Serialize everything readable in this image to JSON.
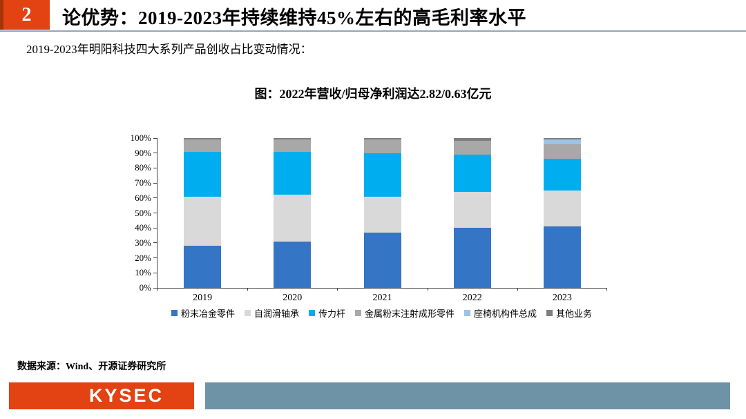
{
  "header": {
    "page_number": "2",
    "title": "论优势：2019-2023年持续维持45%左右的高毛利率水平"
  },
  "subtitle": "2019-2023年明阳科技四大系列产品创收占比变动情况：",
  "chart_title": "图：2022年营收/归母净利润达2.82/0.63亿元",
  "chart_data": {
    "type": "bar",
    "stacked": true,
    "categories": [
      "2019",
      "2020",
      "2021",
      "2022",
      "2023"
    ],
    "series": [
      {
        "name": "粉末冶金零件",
        "color": "#3575C5",
        "values": [
          28,
          31,
          37,
          40,
          41
        ]
      },
      {
        "name": "自润滑轴承",
        "color": "#D9D9D9",
        "values": [
          33,
          31,
          24,
          24,
          24
        ]
      },
      {
        "name": "传力杆",
        "color": "#00AEEF",
        "values": [
          30,
          29,
          29,
          25,
          21
        ]
      },
      {
        "name": "金属粉末注射成形零件",
        "color": "#A8A8A8",
        "values": [
          8,
          8,
          9,
          9,
          10
        ]
      },
      {
        "name": "座椅机构件总成",
        "color": "#9DC3E6",
        "values": [
          0,
          0,
          0,
          0,
          3
        ]
      },
      {
        "name": "其他业务",
        "color": "#7F7F7F",
        "values": [
          1,
          1,
          1,
          2,
          1
        ]
      }
    ],
    "ylim": [
      0,
      100
    ],
    "y_tick_labels": [
      "0%",
      "10%",
      "20%",
      "30%",
      "40%",
      "50%",
      "60%",
      "70%",
      "80%",
      "90%",
      "100%"
    ],
    "legend_position": "bottom",
    "grid": false,
    "title": "图：2022年营收/归母净利润达2.82/0.63亿元",
    "xlabel": "",
    "ylabel": ""
  },
  "source": "数据来源：Wind、开源证券研究所",
  "footer": {
    "logo_text": "KYSEC",
    "accent_color": "#E34212",
    "bar_color": "#6E92A6"
  }
}
